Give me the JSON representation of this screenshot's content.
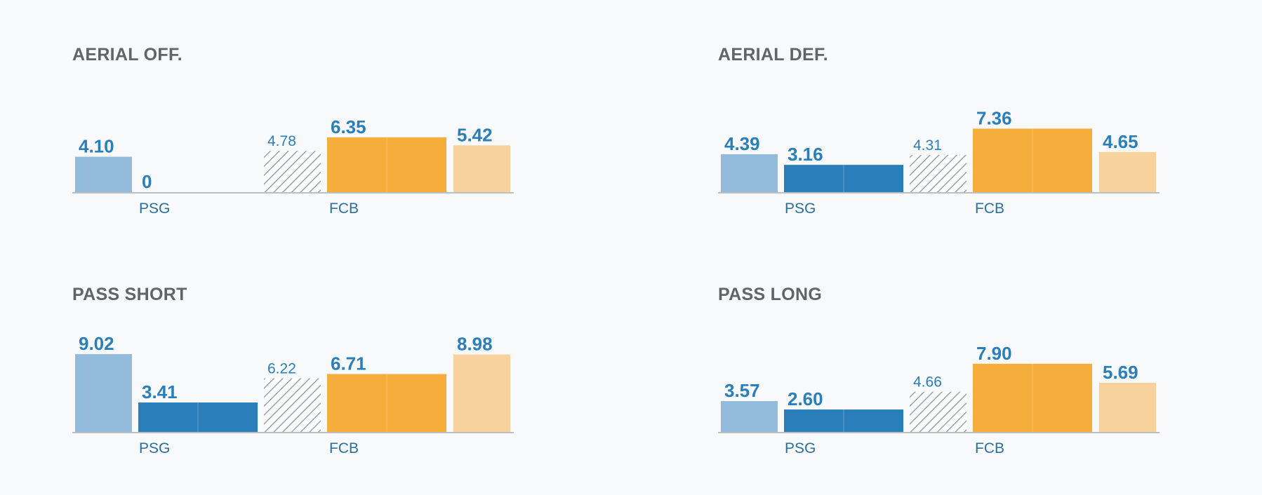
{
  "colors": {
    "psg_light": "#93bcdc",
    "psg_dark": "#2a7fba",
    "fcb_dark": "#f5ad3c",
    "fcb_light": "#f8d29c",
    "hatch": "#8a9399",
    "value_text": "#2a7fba",
    "team_text": "#2a6f9e",
    "title_text": "#5f6566",
    "axis": "#b9bfc3"
  },
  "chart_data": [
    {
      "type": "bar",
      "title": "AERIAL OFF.",
      "teams": [
        "PSG",
        "FCB"
      ],
      "bars": [
        {
          "team": "PSG",
          "style": "light",
          "value": 4.1,
          "label": "4.10"
        },
        {
          "team": "PSG",
          "style": "dark",
          "value": 0,
          "label": "0"
        },
        {
          "team": "FCB",
          "style": "hatch",
          "value": 4.78,
          "label": "4.78"
        },
        {
          "team": "FCB",
          "style": "dark",
          "value": 6.35,
          "label": "6.35"
        },
        {
          "team": "FCB",
          "style": "light",
          "value": 5.42,
          "label": "5.42"
        }
      ]
    },
    {
      "type": "bar",
      "title": "AERIAL DEF.",
      "teams": [
        "PSG",
        "FCB"
      ],
      "bars": [
        {
          "team": "PSG",
          "style": "light",
          "value": 4.39,
          "label": "4.39"
        },
        {
          "team": "PSG",
          "style": "dark",
          "value": 3.16,
          "label": "3.16"
        },
        {
          "team": "FCB",
          "style": "hatch",
          "value": 4.31,
          "label": "4.31"
        },
        {
          "team": "FCB",
          "style": "dark",
          "value": 7.36,
          "label": "7.36"
        },
        {
          "team": "FCB",
          "style": "light",
          "value": 4.65,
          "label": "4.65"
        }
      ]
    },
    {
      "type": "bar",
      "title": "PASS SHORT",
      "teams": [
        "PSG",
        "FCB"
      ],
      "bars": [
        {
          "team": "PSG",
          "style": "light",
          "value": 9.02,
          "label": "9.02"
        },
        {
          "team": "PSG",
          "style": "dark",
          "value": 3.41,
          "label": "3.41"
        },
        {
          "team": "FCB",
          "style": "hatch",
          "value": 6.22,
          "label": "6.22"
        },
        {
          "team": "FCB",
          "style": "dark",
          "value": 6.71,
          "label": "6.71"
        },
        {
          "team": "FCB",
          "style": "light",
          "value": 8.98,
          "label": "8.98"
        }
      ]
    },
    {
      "type": "bar",
      "title": "PASS LONG",
      "teams": [
        "PSG",
        "FCB"
      ],
      "bars": [
        {
          "team": "PSG",
          "style": "light",
          "value": 3.57,
          "label": "3.57"
        },
        {
          "team": "PSG",
          "style": "dark",
          "value": 2.6,
          "label": "2.60"
        },
        {
          "team": "FCB",
          "style": "hatch",
          "value": 4.66,
          "label": "4.66"
        },
        {
          "team": "FCB",
          "style": "dark",
          "value": 7.9,
          "label": "7.90"
        },
        {
          "team": "FCB",
          "style": "light",
          "value": 5.69,
          "label": "5.69"
        }
      ]
    }
  ]
}
